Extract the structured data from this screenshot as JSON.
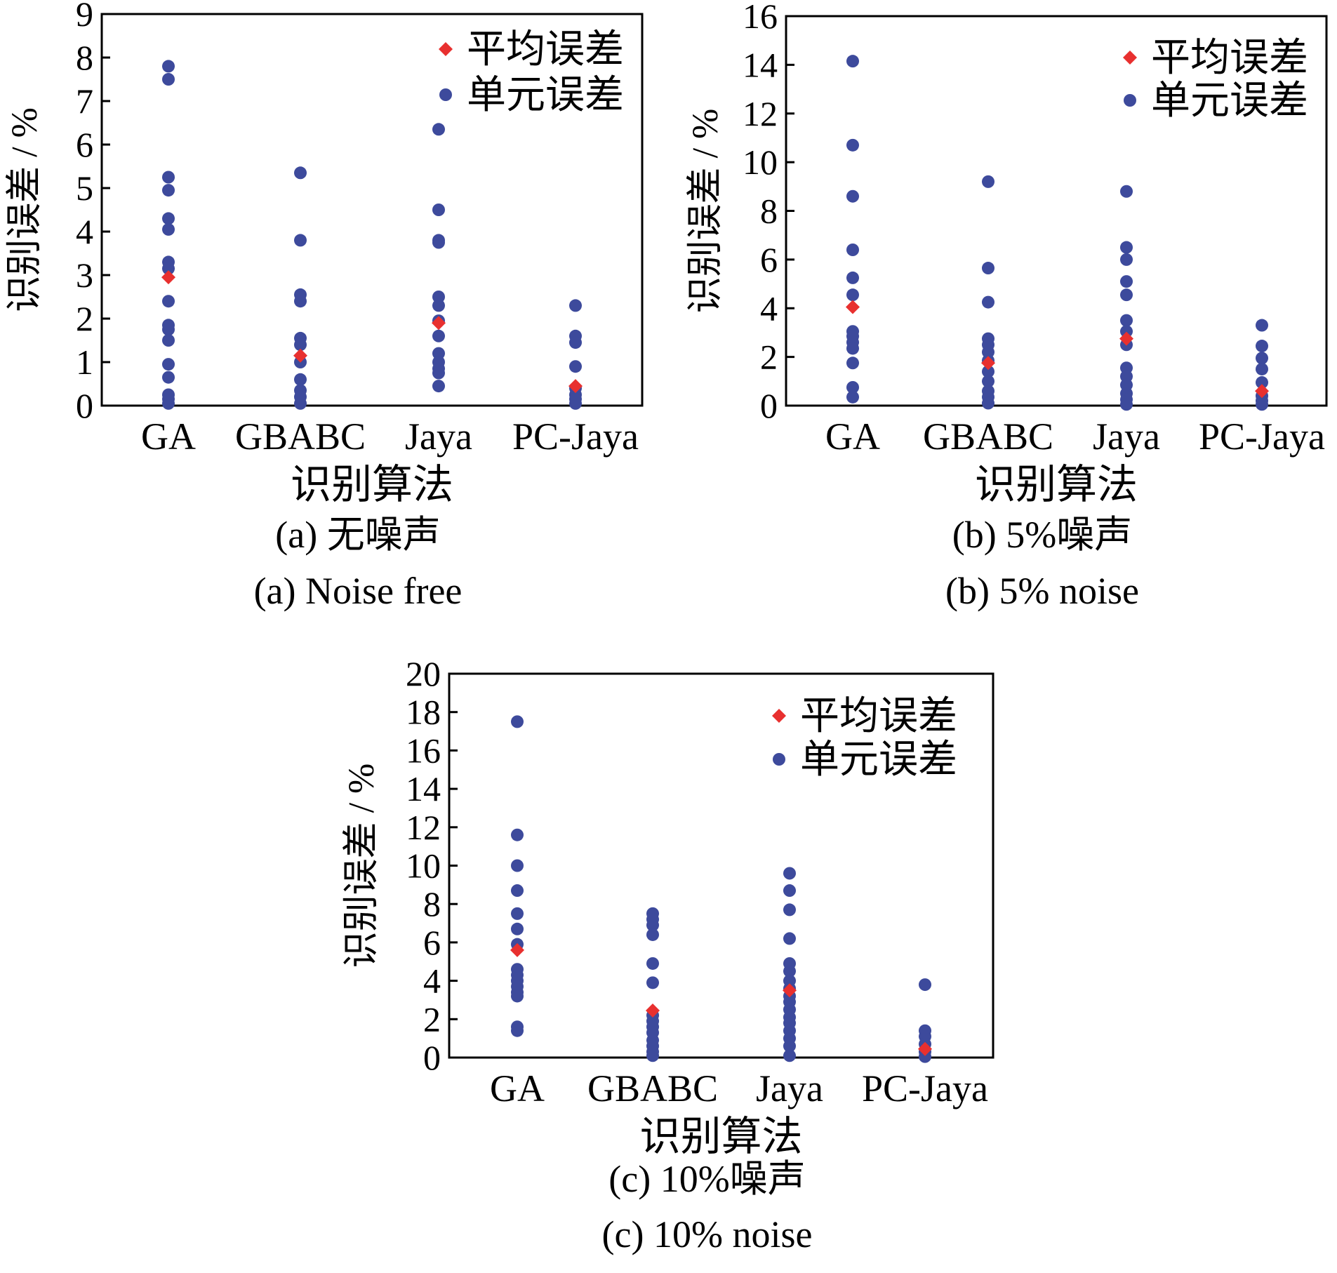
{
  "legend": {
    "mean": "平均误差",
    "unit": "单元误差"
  },
  "colors": {
    "mean": "#e8302f",
    "unit": "#3d4a9c",
    "axis": "#000000"
  },
  "chart_data": [
    {
      "id": "a",
      "type": "scatter",
      "categories": [
        "GA",
        "GBABC",
        "Jaya",
        "PC-Jaya"
      ],
      "xlabel": "识别算法",
      "ylabel": "识别误差 / %",
      "ylim": [
        0,
        9
      ],
      "yticks": [
        0,
        1,
        2,
        3,
        4,
        5,
        6,
        7,
        8,
        9
      ],
      "grid": false,
      "legend_position": "top-right",
      "caption_cn": "(a)  无噪声",
      "caption_en": "(a)  Noise free",
      "mean": [
        2.95,
        1.15,
        1.9,
        0.45
      ],
      "units": [
        [
          7.8,
          7.5,
          5.25,
          4.95,
          4.3,
          4.05,
          3.3,
          3.15,
          2.4,
          1.85,
          1.75,
          1.5,
          0.95,
          0.65,
          0.25,
          0.15,
          0.05
        ],
        [
          5.35,
          3.8,
          2.55,
          2.4,
          1.55,
          1.4,
          1.0,
          0.6,
          0.35,
          0.2,
          0.05
        ],
        [
          6.35,
          4.5,
          3.8,
          3.75,
          2.5,
          2.3,
          1.95,
          1.6,
          1.2,
          1.0,
          0.85,
          0.75,
          0.45
        ],
        [
          2.3,
          1.6,
          1.45,
          0.9,
          0.4,
          0.25,
          0.15,
          0.05
        ]
      ]
    },
    {
      "id": "b",
      "type": "scatter",
      "categories": [
        "GA",
        "GBABC",
        "Jaya",
        "PC-Jaya"
      ],
      "xlabel": "识别算法",
      "ylabel": "识别误差 / %",
      "ylim": [
        0,
        16
      ],
      "yticks": [
        0,
        2,
        4,
        6,
        8,
        10,
        12,
        14,
        16
      ],
      "grid": false,
      "legend_position": "top-right",
      "caption_cn": "(b)  5%噪声",
      "caption_en": "(b)  5% noise",
      "mean": [
        4.05,
        1.75,
        2.75,
        0.6
      ],
      "units": [
        [
          14.15,
          10.7,
          8.6,
          6.4,
          5.25,
          4.55,
          3.05,
          2.85,
          2.6,
          2.35,
          1.75,
          0.75,
          0.35
        ],
        [
          9.2,
          5.65,
          4.25,
          2.75,
          2.5,
          2.2,
          1.85,
          1.4,
          1.0,
          0.6,
          0.35,
          0.1
        ],
        [
          8.8,
          6.5,
          6.0,
          5.1,
          4.55,
          3.5,
          3.05,
          2.5,
          1.55,
          1.2,
          0.85,
          0.5,
          0.25,
          0.05
        ],
        [
          3.3,
          2.45,
          1.95,
          1.5,
          0.95,
          0.4,
          0.2,
          0.05
        ]
      ]
    },
    {
      "id": "c",
      "type": "scatter",
      "categories": [
        "GA",
        "GBABC",
        "Jaya",
        "PC-Jaya"
      ],
      "xlabel": "识别算法",
      "ylabel": "识别误差 / %",
      "ylim": [
        0,
        20
      ],
      "yticks": [
        0,
        2,
        4,
        6,
        8,
        10,
        12,
        14,
        16,
        18,
        20
      ],
      "grid": false,
      "legend_position": "top-right",
      "caption_cn": "(c) 10%噪声",
      "caption_en": "(c) 10% noise",
      "mean": [
        5.6,
        2.45,
        3.5,
        0.45
      ],
      "units": [
        [
          17.5,
          11.6,
          10.0,
          8.7,
          7.5,
          6.7,
          5.9,
          4.6,
          4.3,
          4.0,
          3.7,
          3.4,
          3.2,
          1.6,
          1.4
        ],
        [
          7.5,
          7.2,
          6.9,
          6.4,
          4.9,
          3.9,
          2.2,
          1.9,
          1.6,
          1.3,
          0.9,
          0.6,
          0.3,
          0.1
        ],
        [
          9.6,
          8.7,
          7.7,
          6.2,
          4.9,
          4.5,
          4.0,
          3.6,
          3.2,
          2.9,
          2.5,
          2.1,
          1.8,
          1.4,
          1.0,
          0.6,
          0.1
        ],
        [
          3.8,
          1.4,
          1.1,
          0.7,
          0.3,
          0.05
        ]
      ]
    }
  ]
}
